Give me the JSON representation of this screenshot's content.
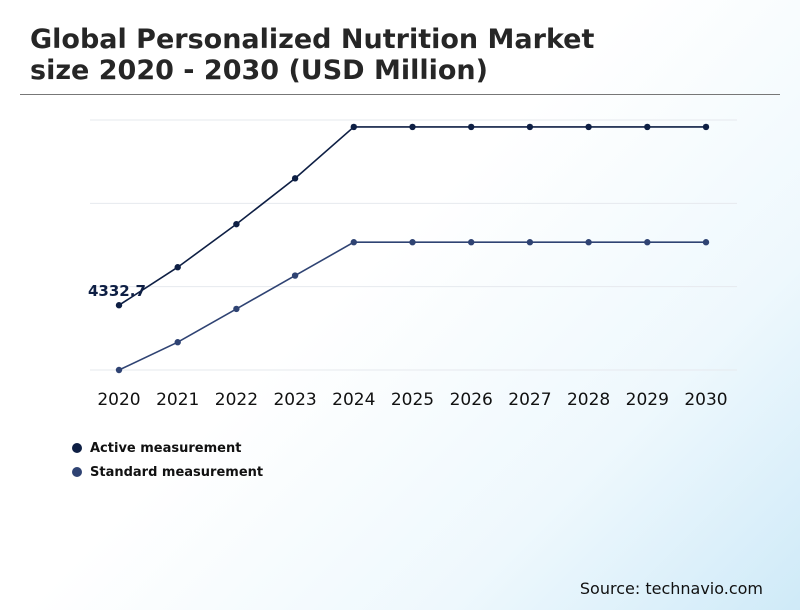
{
  "title": "Global Personalized Nutrition Market size 2020 - 2030 (USD Million)",
  "source": "Source: technavio.com",
  "legend": [
    {
      "label": "Active measurement",
      "color": "#0e1f44"
    },
    {
      "label": "Standard measurement",
      "color": "#2f4373"
    }
  ],
  "chart_data": {
    "type": "line",
    "title": "Global Personalized Nutrition Market size 2020 - 2030 (USD Million)",
    "xlabel": "",
    "ylabel": "",
    "categories": [
      "2020",
      "2021",
      "2022",
      "2023",
      "2024",
      "2025",
      "2026",
      "2027",
      "2028",
      "2029",
      "2030"
    ],
    "ylim": [
      2000,
      11000
    ],
    "grid": true,
    "series": [
      {
        "name": "Active measurement",
        "color": "#0e1f44",
        "values": [
          4332.7,
          5700,
          7250,
          8900,
          10750,
          10750,
          10750,
          10750,
          10750,
          10750,
          10750
        ]
      },
      {
        "name": "Standard measurement",
        "color": "#2f4373",
        "values": [
          2000,
          3000,
          4200,
          5400,
          6600,
          6600,
          6600,
          6600,
          6600,
          6600,
          6600
        ]
      }
    ],
    "annotations": [
      {
        "series": 0,
        "index": 0,
        "text": "4332.7"
      }
    ]
  }
}
